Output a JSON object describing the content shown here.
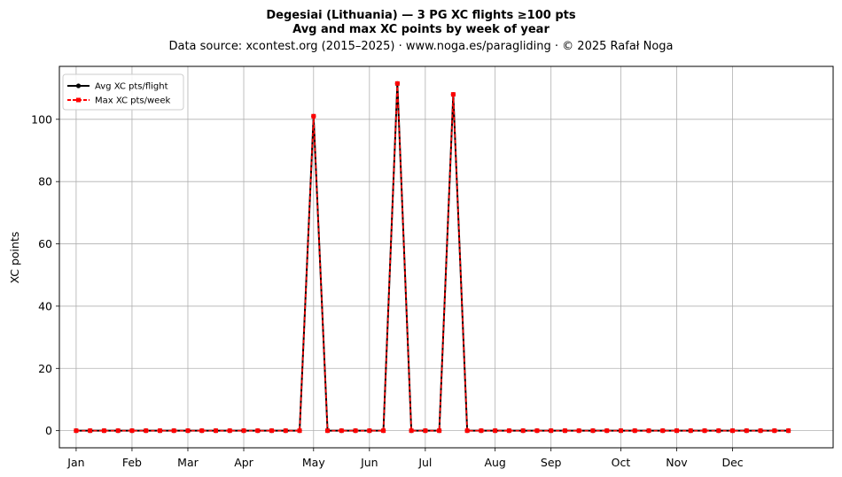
{
  "chart_data": {
    "type": "line",
    "title": "Degesiai (Lithuania)  —  3 PG XC flights ≥100 pts",
    "title2": "Avg and max XC points by week of year",
    "subtitle": "Data source: xcontest.org (2015–2025)  ·  www.noga.es/paragliding  ·  © 2025 Rafał Noga",
    "xlabel": "",
    "ylabel": "XC points",
    "ylim": [
      -5.5,
      117
    ],
    "yticks": [
      0,
      20,
      40,
      60,
      80,
      100
    ],
    "xlim": [
      -1.2,
      54.2
    ],
    "xticks": [
      {
        "pos": 0,
        "label": "Jan"
      },
      {
        "pos": 4,
        "label": "Feb"
      },
      {
        "pos": 8,
        "label": "Mar"
      },
      {
        "pos": 12,
        "label": "Apr"
      },
      {
        "pos": 17,
        "label": "May"
      },
      {
        "pos": 21,
        "label": "Jun"
      },
      {
        "pos": 25,
        "label": "Jul"
      },
      {
        "pos": 30,
        "label": "Aug"
      },
      {
        "pos": 34,
        "label": "Sep"
      },
      {
        "pos": 39,
        "label": "Oct"
      },
      {
        "pos": 43,
        "label": "Nov"
      },
      {
        "pos": 47,
        "label": "Dec"
      }
    ],
    "grid": true,
    "legend_position": "top-left",
    "x": [
      0,
      1,
      2,
      3,
      4,
      5,
      6,
      7,
      8,
      9,
      10,
      11,
      12,
      13,
      14,
      15,
      16,
      17,
      18,
      19,
      20,
      21,
      22,
      23,
      24,
      25,
      26,
      27,
      28,
      29,
      30,
      31,
      32,
      33,
      34,
      35,
      36,
      37,
      38,
      39,
      40,
      41,
      42,
      43,
      44,
      45,
      46,
      47,
      48,
      49,
      50,
      51
    ],
    "series": [
      {
        "name": "Avg XC pts/flight",
        "color": "#000000",
        "style": "solid",
        "marker": "circle",
        "values": [
          0,
          0,
          0,
          0,
          0,
          0,
          0,
          0,
          0,
          0,
          0,
          0,
          0,
          0,
          0,
          0,
          0,
          101,
          0,
          0,
          0,
          0,
          0,
          111.5,
          0,
          0,
          0,
          108,
          0,
          0,
          0,
          0,
          0,
          0,
          0,
          0,
          0,
          0,
          0,
          0,
          0,
          0,
          0,
          0,
          0,
          0,
          0,
          0,
          0,
          0,
          0,
          0
        ]
      },
      {
        "name": "Max XC pts/week",
        "color": "#ff0000",
        "style": "dashed",
        "marker": "square",
        "values": [
          0,
          0,
          0,
          0,
          0,
          0,
          0,
          0,
          0,
          0,
          0,
          0,
          0,
          0,
          0,
          0,
          0,
          101,
          0,
          0,
          0,
          0,
          0,
          111.5,
          0,
          0,
          0,
          108,
          0,
          0,
          0,
          0,
          0,
          0,
          0,
          0,
          0,
          0,
          0,
          0,
          0,
          0,
          0,
          0,
          0,
          0,
          0,
          0,
          0,
          0,
          0,
          0
        ]
      }
    ]
  }
}
